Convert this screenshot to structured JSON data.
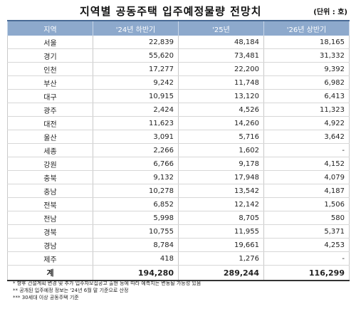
{
  "title": "지역별 공동주택 입주예정물량 전망치",
  "unit": "(단위 : 호)",
  "table": {
    "headers": [
      "지역",
      "'24년 하반기",
      "'25년",
      "'26년 상반기"
    ],
    "rows": [
      [
        "서울",
        "22,839",
        "48,184",
        "18,165"
      ],
      [
        "경기",
        "55,620",
        "73,481",
        "31,332"
      ],
      [
        "인천",
        "17,277",
        "22,200",
        "9,392"
      ],
      [
        "부산",
        "9,242",
        "11,748",
        "6,982"
      ],
      [
        "대구",
        "10,915",
        "13,120",
        "6,413"
      ],
      [
        "광주",
        "2,424",
        "4,526",
        "11,323"
      ],
      [
        "대전",
        "11,623",
        "14,260",
        "4,922"
      ],
      [
        "울산",
        "3,091",
        "5,716",
        "3,642"
      ],
      [
        "세종",
        "2,266",
        "1,602",
        "-"
      ],
      [
        "강원",
        "6,766",
        "9,178",
        "4,152"
      ],
      [
        "충북",
        "9,132",
        "17,948",
        "4,079"
      ],
      [
        "충남",
        "10,278",
        "13,542",
        "4,187"
      ],
      [
        "전북",
        "6,852",
        "12,142",
        "1,506"
      ],
      [
        "전남",
        "5,998",
        "8,705",
        "580"
      ],
      [
        "경북",
        "10,755",
        "11,955",
        "5,371"
      ],
      [
        "경남",
        "8,784",
        "19,661",
        "4,253"
      ],
      [
        "제주",
        "418",
        "1,276",
        "-"
      ]
    ],
    "total": [
      "계",
      "194,280",
      "289,244",
      "116,299"
    ]
  },
  "notes": [
    "* 향후 건설계획 변경 및 추가 입주자모집공고 출현 등에 따라 예측치는 변동될 가능성 있음",
    "** 공개된 입주예정 정보는 '24년 6월 말 기준으로 산정",
    "*** 30세대 이상 공동주택 기준"
  ]
}
